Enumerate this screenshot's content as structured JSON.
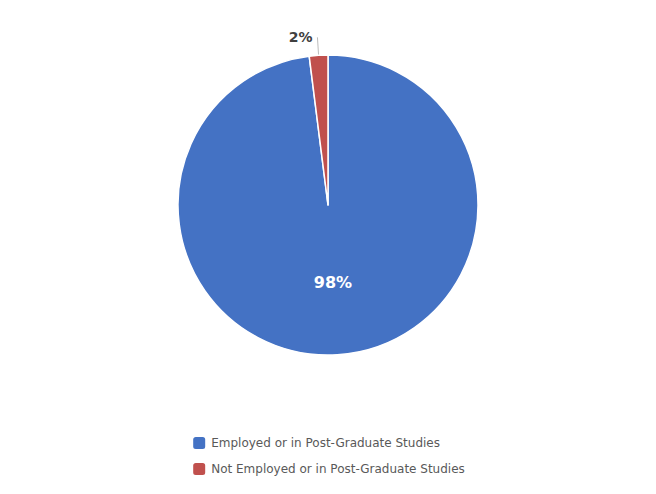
{
  "chart_data": {
    "type": "pie",
    "categories": [
      "Employed or in Post-Graduate Studies",
      "Not Employed or in Post-Graduate Studies"
    ],
    "values": [
      98,
      2
    ],
    "value_labels": [
      "98%",
      "2%"
    ],
    "colors": [
      "#4472C4",
      "#C0504D"
    ],
    "data_labels": true,
    "legend": "bottom"
  }
}
